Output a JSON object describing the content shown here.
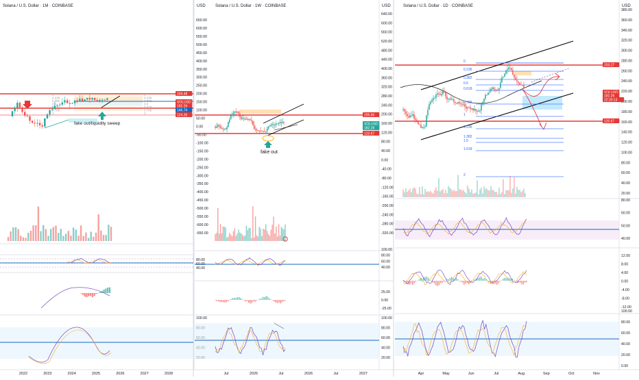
{
  "panels": [
    {
      "id": "monthly",
      "title": "Solana / U.S. Dollar · 1M · COINBASE",
      "price_axis_unit": "USD",
      "price_ticks": [
        "650.00",
        "600.00",
        "550.00",
        "500.00",
        "450.00",
        "400.00",
        "350.00",
        "300.00",
        "250.00",
        "200.00",
        "150.00",
        "100.00",
        "50.00",
        "0.00",
        "-50.00",
        "-100.00",
        "-150.00",
        "-200.00",
        "-250.00",
        "-300.00",
        "-350.00",
        "-400.00",
        "-450.00",
        "-500.00",
        "-550.00",
        "-600.00",
        "-650.00"
      ],
      "price_tags": [
        {
          "text": "204.48",
          "color": "#e53935"
        },
        {
          "text": "SOLUSD",
          "color": "#e53935"
        },
        {
          "text": "182.26",
          "color": "#e53935"
        },
        {
          "text": "146.74",
          "color": "#1565c0"
        },
        {
          "text": "124.26",
          "color": "#e53935"
        }
      ],
      "fib_labels": [
        "0",
        "0.236",
        "0.382",
        "0.5",
        "0.618",
        "0.786",
        "1"
      ],
      "annotations": [
        "fake out/liquidity sweep"
      ],
      "x_ticks": [
        "2022",
        "2023",
        "2024",
        "2025",
        "2026",
        "2027",
        "2028"
      ],
      "rsi_ticks": [
        "80.00",
        "60.00",
        "40.00"
      ],
      "macd_ticks": [],
      "stoch_ticks": [
        "100.00",
        "80.00",
        "60.00",
        "40.00",
        "20.00"
      ]
    },
    {
      "id": "weekly",
      "title": "Solana / U.S. Dollar · 1W · COINBASE",
      "price_axis_unit": "USD",
      "price_ticks": [
        "640.00",
        "600.00",
        "560.00",
        "520.00",
        "480.00",
        "440.00",
        "400.00",
        "360.00",
        "320.00",
        "280.00",
        "240.00",
        "200.00",
        "160.00",
        "120.00",
        "80.00",
        "40.00",
        "0.00",
        "-40.00",
        "-80.00",
        "-120.00",
        "-160.00",
        "-200.00",
        "-240.00",
        "-280.00",
        "-320.00"
      ],
      "price_tags": [
        {
          "text": "205.60",
          "color": "#e53935"
        },
        {
          "text": "SOLUSD",
          "color": "#26a69a"
        },
        {
          "text": "182.26",
          "color": "#26a69a"
        },
        {
          "text": "123.67",
          "color": "#e53935"
        }
      ],
      "annotations": [
        "fake out"
      ],
      "x_ticks": [
        "Jul",
        "2025",
        "Jul",
        "2026",
        "Jul",
        "2027"
      ],
      "rsi_ticks": [
        "100.00",
        "80.00",
        "60.00",
        "40.00"
      ],
      "macd_ticks": [
        "25.00",
        "0.00",
        "-25.00"
      ],
      "stoch_ticks": [
        "100.00",
        "80.00",
        "60.00",
        "40.00",
        "20.00"
      ]
    },
    {
      "id": "daily",
      "title": "Solana / U.S. Dollar · 1D · COINBASE",
      "price_axis_unit": "USD",
      "price_ticks": [
        "380.00",
        "360.00",
        "340.00",
        "320.00",
        "300.00",
        "280.00",
        "260.00",
        "240.00",
        "220.00",
        "200.00",
        "180.00",
        "160.00",
        "140.00",
        "120.00",
        "100.00",
        "80.00",
        "60.00",
        "40.00",
        "20.00"
      ],
      "price_tags": [
        {
          "text": "203.27",
          "color": "#e53935"
        },
        {
          "text": "SOLUSD",
          "color": "#e53935"
        },
        {
          "text": "182.26",
          "color": "#e53935"
        },
        {
          "text": "22:20:13",
          "color": "#e53935"
        },
        {
          "text": "120.67",
          "color": "#e53935"
        }
      ],
      "fib_labels": [
        "0",
        "0.236",
        "0.382",
        "0.5",
        "0.618",
        "0.786",
        "1",
        "1.236",
        "1.382",
        "1.5",
        "1.618",
        "2"
      ],
      "annotations": [],
      "x_ticks": [
        "Apr",
        "May",
        "Jun",
        "Jul",
        "Aug",
        "Sep",
        "Oct",
        "Nov"
      ],
      "rsi_ticks": [
        "80.00",
        "60.00",
        "50.00",
        "40.00"
      ],
      "macd_ticks": [
        "12.00",
        "8.00",
        "4.00",
        "0.00",
        "-4.00",
        "-8.00",
        "-12.00"
      ],
      "stoch_ticks": [
        "100.00",
        "80.00",
        "60.00",
        "40.00",
        "20.00",
        "0.00"
      ]
    }
  ],
  "colors": {
    "bull": "#26a69a",
    "bear": "#ef5350",
    "level_red": "#e53935",
    "level_blue": "#1565c0",
    "rsi_line": "#7e57c2",
    "channel": "#000000",
    "fib_blue": "#2962ff"
  }
}
